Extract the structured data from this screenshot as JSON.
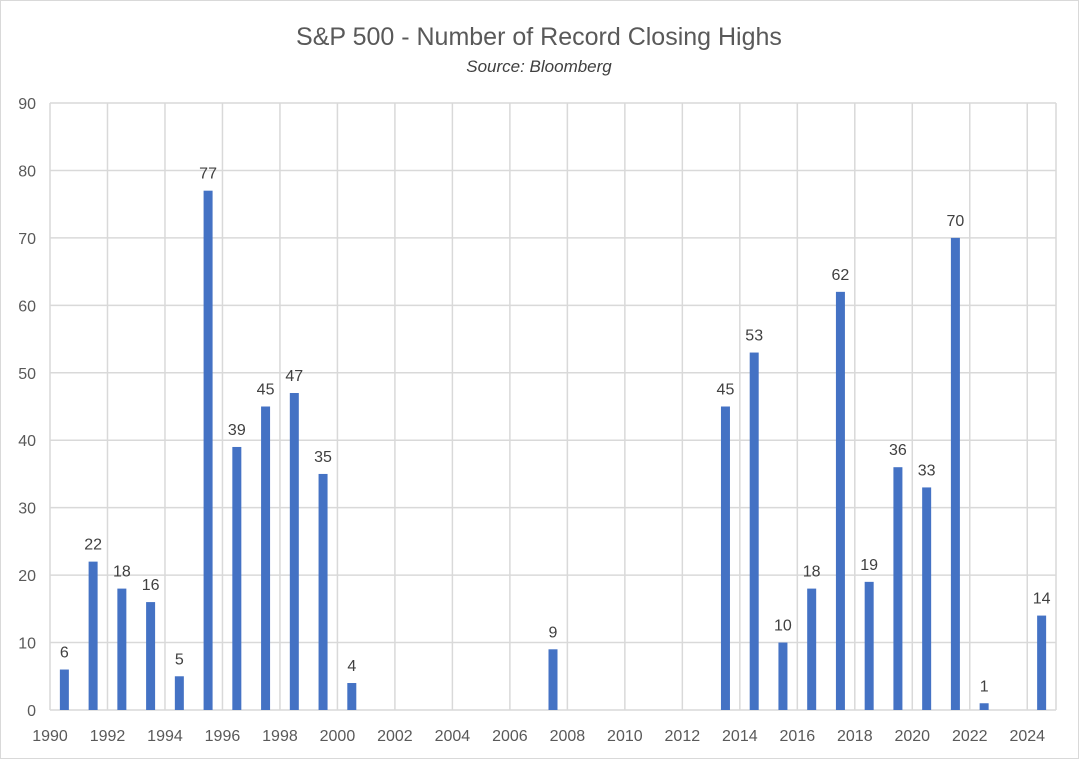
{
  "chart_data": {
    "type": "bar",
    "title": "S&P 500 - Number of Record Closing Highs",
    "subtitle": "Source: Bloomberg",
    "xlabel": "",
    "ylabel": "",
    "ylim": [
      0,
      90
    ],
    "yticks": [
      0,
      10,
      20,
      30,
      40,
      50,
      60,
      70,
      80,
      90
    ],
    "grid": true,
    "legend": "none",
    "bar_color": "#4472c4",
    "categories": [
      1990,
      1991,
      1992,
      1993,
      1994,
      1995,
      1996,
      1997,
      1998,
      1999,
      2000,
      2001,
      2002,
      2003,
      2004,
      2005,
      2006,
      2007,
      2008,
      2009,
      2010,
      2011,
      2012,
      2013,
      2014,
      2015,
      2016,
      2017,
      2018,
      2019,
      2020,
      2021,
      2022,
      2023,
      2024
    ],
    "tick_labels": [
      "1990",
      "1992",
      "1994",
      "1996",
      "1998",
      "2000",
      "2002",
      "2004",
      "2006",
      "2008",
      "2010",
      "2012",
      "2014",
      "2016",
      "2018",
      "2020",
      "2022",
      "2024"
    ],
    "values": [
      6,
      22,
      18,
      16,
      5,
      77,
      39,
      45,
      47,
      35,
      4,
      0,
      0,
      0,
      0,
      0,
      0,
      9,
      0,
      0,
      0,
      0,
      0,
      45,
      53,
      10,
      18,
      62,
      19,
      36,
      33,
      70,
      1,
      0,
      14
    ],
    "data_labels": [
      "6",
      "22",
      "18",
      "16",
      "5",
      "77",
      "39",
      "45",
      "47",
      "35",
      "4",
      "",
      "",
      "",
      "",
      "",
      "",
      "9",
      "",
      "",
      "",
      "",
      "",
      "45",
      "53",
      "10",
      "18",
      "62",
      "19",
      "36",
      "33",
      "70",
      "1",
      "",
      "14"
    ]
  }
}
